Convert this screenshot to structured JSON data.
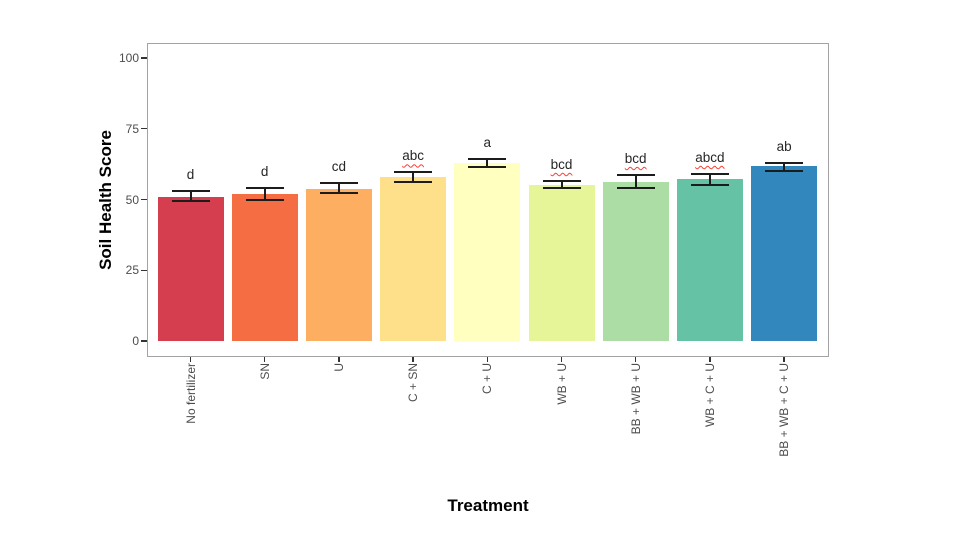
{
  "chart_data": {
    "type": "bar",
    "title": "",
    "xlabel": "Treatment",
    "ylabel": "Soil Health Score",
    "ylim": [
      0,
      100
    ],
    "yticks": [
      0,
      25,
      50,
      75,
      100
    ],
    "grid": "off",
    "legend": "none",
    "categories": [
      "No fertilizer",
      "SN",
      "U",
      "C + SN",
      "C + U",
      "WB + U",
      "BB + WB + U",
      "WB + C + U",
      "BB + WB + C + U"
    ],
    "values": [
      51.0,
      51.9,
      53.7,
      58.1,
      62.8,
      55.2,
      56.3,
      57.1,
      61.8
    ],
    "error_low": [
      49.5,
      49.8,
      52.4,
      56.3,
      61.5,
      54.0,
      54.0,
      55.1,
      60.2
    ],
    "error_high": [
      53.0,
      54.2,
      55.7,
      59.6,
      64.2,
      56.6,
      58.7,
      59.0,
      63.0
    ],
    "sig_letters": [
      "d",
      "d",
      "cd",
      "abc",
      "a",
      "bcd",
      "bcd",
      "abcd",
      "ab"
    ],
    "sig_letter_red_squiggle": [
      false,
      false,
      false,
      true,
      false,
      true,
      true,
      true,
      false
    ],
    "bar_colors": [
      "#d53e4f",
      "#f46d43",
      "#fdae61",
      "#fee08b",
      "#ffffbf",
      "#e6f598",
      "#abdda4",
      "#66c2a5",
      "#3288bd"
    ],
    "style": {
      "errorbar_color": "#1c1c1c",
      "axis_text_color": "#4d4d4d",
      "tick_mark_color": "#333333",
      "panel_border_color": "#a3a3a3",
      "squiggle_color": "#ff3b30",
      "background_color": "#ffffff"
    }
  }
}
